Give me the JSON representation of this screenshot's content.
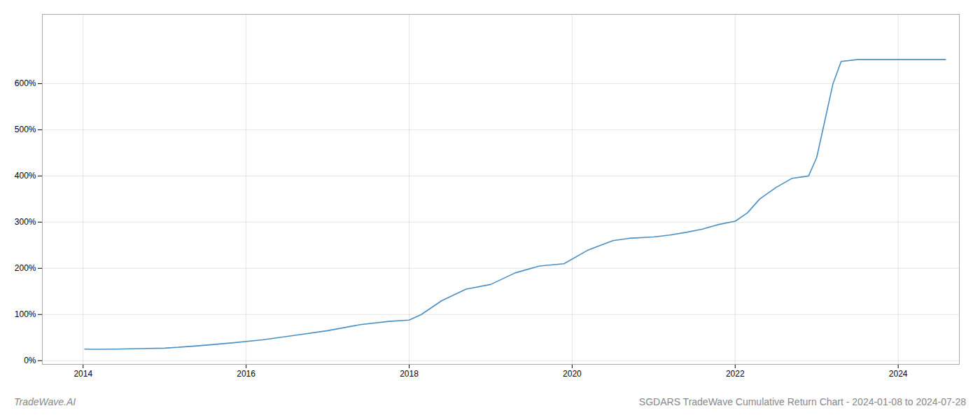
{
  "chart_data": {
    "type": "line",
    "title": "SGDARS TradeWave Cumulative Return Chart - 2024-01-08 to 2024-07-28",
    "annotations": [
      "TradeWave.AI"
    ],
    "color": "#4a90c4",
    "grid": true,
    "x": [
      2014.02,
      2014.15,
      2014.4,
      2014.7,
      2015.0,
      2015.4,
      2015.8,
      2016.2,
      2016.6,
      2017.0,
      2017.4,
      2017.75,
      2018.0,
      2018.15,
      2018.4,
      2018.7,
      2019.0,
      2019.3,
      2019.6,
      2019.9,
      2020.2,
      2020.5,
      2020.7,
      2021.0,
      2021.2,
      2021.4,
      2021.6,
      2021.8,
      2022.0,
      2022.15,
      2022.3,
      2022.5,
      2022.7,
      2022.9,
      2023.0,
      2023.1,
      2023.2,
      2023.3,
      2023.5,
      2024.0,
      2024.58
    ],
    "values": [
      0.25,
      0.245,
      0.25,
      0.26,
      0.27,
      0.32,
      0.38,
      0.45,
      0.55,
      0.65,
      0.78,
      0.85,
      0.88,
      1.0,
      1.3,
      1.55,
      1.65,
      1.9,
      2.05,
      2.1,
      2.4,
      2.6,
      2.65,
      2.68,
      2.72,
      2.78,
      2.85,
      2.95,
      3.02,
      3.2,
      3.5,
      3.75,
      3.95,
      4.0,
      4.4,
      5.2,
      6.0,
      6.48,
      6.52,
      6.52,
      6.52
    ],
    "xlim": [
      2013.5,
      2024.75
    ],
    "xticks": [
      2014,
      2016,
      2018,
      2020,
      2022,
      2024
    ],
    "ylim": [
      -0.08,
      7.5
    ],
    "yticks": [
      {
        "value": 0.0,
        "label": "0%"
      },
      {
        "value": 1.0,
        "label": "100%"
      },
      {
        "value": 2.0,
        "label": "200%"
      },
      {
        "value": 3.0,
        "label": "300%"
      },
      {
        "value": 4.0,
        "label": "400%"
      },
      {
        "value": 5.0,
        "label": "500%"
      },
      {
        "value": 6.0,
        "label": "600%"
      }
    ]
  }
}
